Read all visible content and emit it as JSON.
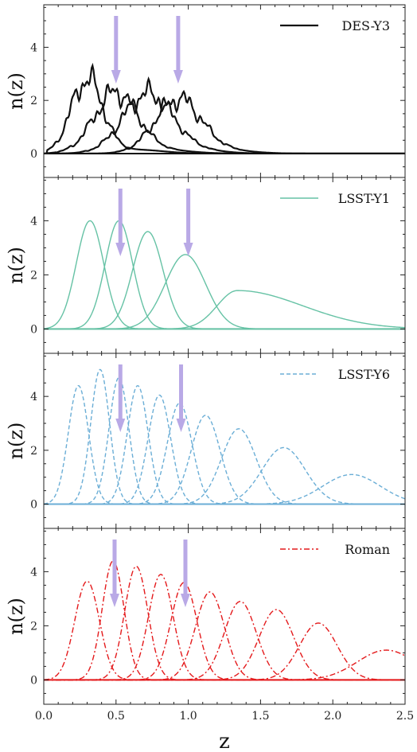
{
  "chart_data": [
    {
      "type": "line",
      "ylabel": "n(z)",
      "xlabel": "",
      "xlim": [
        0.0,
        2.5
      ],
      "ylim": [
        -0.9,
        5.6
      ],
      "yticks": [
        0,
        2,
        4
      ],
      "grid": false,
      "legend": {
        "placement": "top-right",
        "label": "DES-Y3",
        "style": "solid",
        "color": "#111111"
      },
      "arrows_z": [
        0.5,
        0.93
      ],
      "series": [
        {
          "mean": 0.3,
          "sigma": 0.11,
          "peak": 2.8,
          "skew": 0.2
        },
        {
          "mean": 0.5,
          "sigma": 0.15,
          "peak": 2.3,
          "skew": 0.2
        },
        {
          "mean": 0.72,
          "sigma": 0.17,
          "peak": 2.25,
          "skew": 0.0
        },
        {
          "mean": 0.93,
          "sigma": 0.16,
          "peak": 2.05,
          "skew": 0.6
        }
      ]
    },
    {
      "type": "line",
      "ylabel": "n(z)",
      "xlabel": "",
      "xlim": [
        0.0,
        2.5
      ],
      "ylim": [
        -0.9,
        5.6
      ],
      "yticks": [
        0,
        2,
        4
      ],
      "grid": false,
      "legend": {
        "placement": "top-right",
        "label": "LSST-Y1",
        "style": "solid",
        "color": "#66c2a5"
      },
      "arrows_z": [
        0.53,
        1.0
      ],
      "series": [
        {
          "mean": 0.32,
          "sigma": 0.095,
          "peak": 4.0,
          "skew": 0
        },
        {
          "mean": 0.52,
          "sigma": 0.095,
          "peak": 4.0,
          "skew": 0
        },
        {
          "mean": 0.72,
          "sigma": 0.105,
          "peak": 3.6,
          "skew": 0
        },
        {
          "mean": 0.98,
          "sigma": 0.14,
          "peak": 2.75,
          "skew": 0
        },
        {
          "mean": 1.34,
          "sigma": 0.14,
          "sigma_right": 0.45,
          "peak": 1.42,
          "skew": 0
        }
      ]
    },
    {
      "type": "line",
      "ylabel": "n(z)",
      "xlabel": "",
      "xlim": [
        0.0,
        2.5
      ],
      "ylim": [
        -0.9,
        5.6
      ],
      "yticks": [
        0,
        2,
        4
      ],
      "grid": false,
      "legend": {
        "placement": "top-right",
        "label": "LSST-Y6",
        "style": "dashed",
        "color": "#6baed6"
      },
      "arrows_z": [
        0.53,
        0.95
      ],
      "series": [
        {
          "mean": 0.24,
          "sigma": 0.07,
          "peak": 4.4
        },
        {
          "mean": 0.39,
          "sigma": 0.065,
          "peak": 5.0
        },
        {
          "mean": 0.52,
          "sigma": 0.068,
          "peak": 4.7
        },
        {
          "mean": 0.65,
          "sigma": 0.072,
          "peak": 4.4
        },
        {
          "mean": 0.8,
          "sigma": 0.078,
          "peak": 4.05
        },
        {
          "mean": 0.94,
          "sigma": 0.085,
          "peak": 3.75
        },
        {
          "mean": 1.12,
          "sigma": 0.1,
          "peak": 3.3
        },
        {
          "mean": 1.35,
          "sigma": 0.12,
          "peak": 2.8
        },
        {
          "mean": 1.66,
          "sigma": 0.15,
          "peak": 2.1
        },
        {
          "mean": 2.13,
          "sigma": 0.2,
          "peak": 1.1
        }
      ]
    },
    {
      "type": "line",
      "ylabel": "n(z)",
      "xlabel": "z",
      "xlim": [
        0.0,
        2.5
      ],
      "ylim": [
        -0.9,
        5.6
      ],
      "yticks": [
        0,
        2,
        4
      ],
      "xticks": [
        "0.0",
        "0.5",
        "1.0",
        "1.5",
        "2.0",
        "2.5"
      ],
      "grid": false,
      "legend": {
        "placement": "top-right",
        "label": "Roman",
        "style": "dash-dot",
        "color": "#e41a1c"
      },
      "arrows_z": [
        0.49,
        0.98
      ],
      "series": [
        {
          "mean": 0.3,
          "sigma": 0.085,
          "peak": 3.65
        },
        {
          "mean": 0.48,
          "sigma": 0.075,
          "peak": 4.4
        },
        {
          "mean": 0.64,
          "sigma": 0.08,
          "peak": 4.2
        },
        {
          "mean": 0.81,
          "sigma": 0.085,
          "peak": 3.9
        },
        {
          "mean": 0.97,
          "sigma": 0.09,
          "peak": 3.6
        },
        {
          "mean": 1.15,
          "sigma": 0.1,
          "peak": 3.25
        },
        {
          "mean": 1.36,
          "sigma": 0.11,
          "peak": 2.9
        },
        {
          "mean": 1.61,
          "sigma": 0.12,
          "peak": 2.6
        },
        {
          "mean": 1.9,
          "sigma": 0.13,
          "peak": 2.1
        },
        {
          "mean": 2.37,
          "sigma": 0.2,
          "peak": 1.1
        }
      ]
    }
  ],
  "colors": {
    "arrow": "#b9a9e6",
    "axis": "#222222",
    "zero_line": "#333333"
  }
}
